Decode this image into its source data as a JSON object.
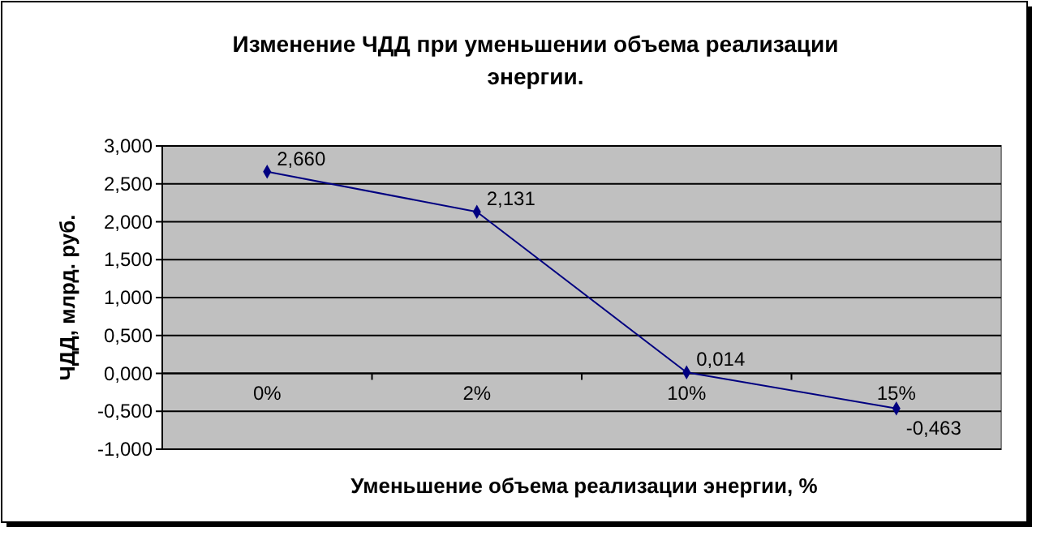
{
  "chart_data": {
    "type": "line",
    "title": "Изменение ЧДД при уменьшении объема реализации энергии.",
    "xlabel": "Уменьшение объема реализации энергии, %",
    "ylabel": "ЧДД, млрд. руб.",
    "categories": [
      "0%",
      "2%",
      "10%",
      "15%"
    ],
    "series": [
      {
        "color": "#000080",
        "values": [
          2.66,
          2.131,
          0.014,
          -0.463
        ],
        "value_labels": [
          "2,660",
          "2,131",
          "0,014",
          "-0,463"
        ]
      }
    ],
    "ylim": [
      -1,
      3
    ],
    "yticks": [
      {
        "value": -1,
        "label": "-1,000"
      },
      {
        "value": -0.5,
        "label": "-0,500"
      },
      {
        "value": 0,
        "label": "0,000"
      },
      {
        "value": 0.5,
        "label": "0,500"
      },
      {
        "value": 1,
        "label": "1,000"
      },
      {
        "value": 1.5,
        "label": "1,500"
      },
      {
        "value": 2,
        "label": "2,000"
      },
      {
        "value": 2.5,
        "label": "2,500"
      },
      {
        "value": 3,
        "label": "3,000"
      }
    ],
    "grid": "y",
    "marker": "diamond",
    "line_style": "solid"
  }
}
